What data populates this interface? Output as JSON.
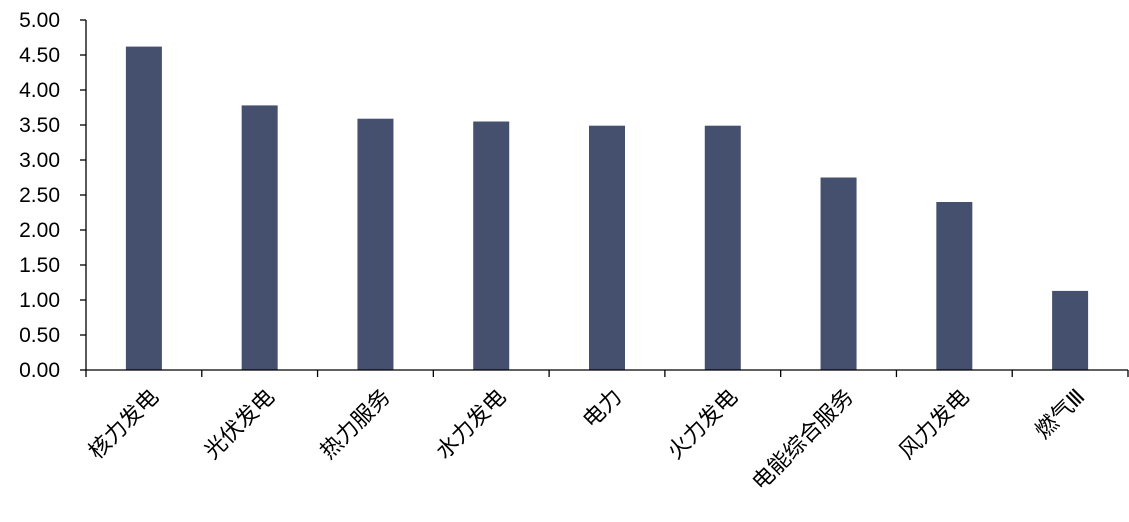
{
  "chart_data": {
    "type": "bar",
    "categories": [
      "核力发电",
      "光伏发电",
      "热力服务",
      "水力发电",
      "电力",
      "火力发电",
      "电能综合服务",
      "风力发电",
      "燃气Ⅲ"
    ],
    "values": [
      4.62,
      3.78,
      3.59,
      3.55,
      3.49,
      3.49,
      2.75,
      2.4,
      1.13
    ],
    "ylim": [
      0,
      5
    ],
    "yticks": [
      "0.00",
      "0.50",
      "1.00",
      "1.50",
      "2.00",
      "2.50",
      "3.00",
      "3.50",
      "4.00",
      "4.50",
      "5.00"
    ],
    "bar_color": "#45506F",
    "axis_color": "#000000",
    "grid": false,
    "legend": "none"
  }
}
